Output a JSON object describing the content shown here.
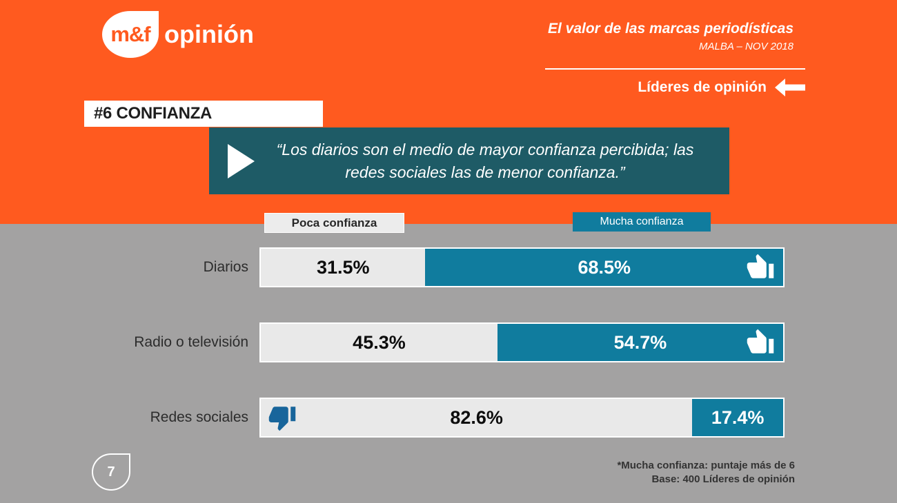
{
  "colors": {
    "orange": "#FF5A1F",
    "gray_background": "#A3A2A2",
    "teal_bar": "#107C9E",
    "teal_quote_box": "#1E5B66",
    "light_bar": "#E9E9E9",
    "thumb_down_blue": "#18659B"
  },
  "header": {
    "logo_mark": "m&f",
    "logo_name": "opinión",
    "deck_title": "El valor de las marcas periodísticas",
    "deck_subtitle": "MALBA – NOV 2018",
    "audience_label": "Líderes de opinión",
    "slide_title": "#6 CONFIANZA",
    "quote": "“Los diarios son el medio de mayor confianza percibida; las redes sociales las de menor confianza.”"
  },
  "legend": {
    "low_label": "Poca confianza",
    "high_label": "Mucha confianza"
  },
  "chart_data": {
    "type": "bar",
    "orientation": "horizontal",
    "stacked": true,
    "unit": "%",
    "xlim": [
      0,
      100
    ],
    "categories": [
      "Diarios",
      "Radio o televisión",
      "Redes sociales"
    ],
    "series": [
      {
        "name": "Poca confianza",
        "color": "#E9E9E9",
        "values": [
          31.5,
          45.3,
          82.6
        ]
      },
      {
        "name": "Mucha confianza",
        "color": "#107C9E",
        "values": [
          68.5,
          54.7,
          17.4
        ]
      }
    ],
    "rows": [
      {
        "label": "Diarios",
        "low": "31.5%",
        "high": "68.5%",
        "icon": "thumbs-up-icon",
        "icon_in": "high"
      },
      {
        "label": "Radio o televisión",
        "low": "45.3%",
        "high": "54.7%",
        "icon": "thumbs-up-icon",
        "icon_in": "high"
      },
      {
        "label": "Redes sociales",
        "low": "82.6%",
        "high": "17.4%",
        "icon": "thumbs-down-icon",
        "icon_in": "low"
      }
    ]
  },
  "footer": {
    "note_line1": "*Mucha confianza: puntaje más de 6",
    "note_line2": "Base: 400 Líderes de opinión",
    "page_number": "7"
  }
}
